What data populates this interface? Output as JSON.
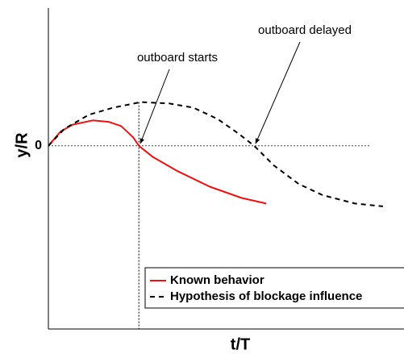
{
  "chart_data": {
    "type": "line",
    "xlabel": "t/T",
    "ylabel": "y/R",
    "xlim": [
      0,
      1
    ],
    "ylim": [
      -1.3,
      1
    ],
    "xticks": [],
    "yticks": [
      0
    ],
    "grid": true,
    "legend": "lower right",
    "series": [
      {
        "name": "Known behavior",
        "color": "#ee1111",
        "style": "solid",
        "x": [
          0,
          0.034,
          0.068,
          0.125,
          0.17,
          0.205,
          0.239,
          0.255,
          0.295,
          0.364,
          0.455,
          0.545,
          0.614
        ],
        "values": [
          0,
          0.1,
          0.15,
          0.18,
          0.17,
          0.14,
          0.06,
          0,
          -0.08,
          -0.18,
          -0.29,
          -0.37,
          -0.41
        ]
      },
      {
        "name": "Hypothesis of blockage influence",
        "color": "#000000",
        "style": "dashed",
        "x": [
          0,
          0.045,
          0.114,
          0.182,
          0.261,
          0.341,
          0.409,
          0.477,
          0.534,
          0.58,
          0.636,
          0.705,
          0.773,
          0.864,
          0.943
        ],
        "values": [
          0,
          0.12,
          0.22,
          0.27,
          0.31,
          0.3,
          0.27,
          0.19,
          0.09,
          0,
          -0.14,
          -0.27,
          -0.35,
          -0.41,
          -0.43
        ]
      }
    ],
    "annotations": [
      {
        "text": "outboard starts"
      },
      {
        "text": "outboard delayed"
      }
    ]
  }
}
